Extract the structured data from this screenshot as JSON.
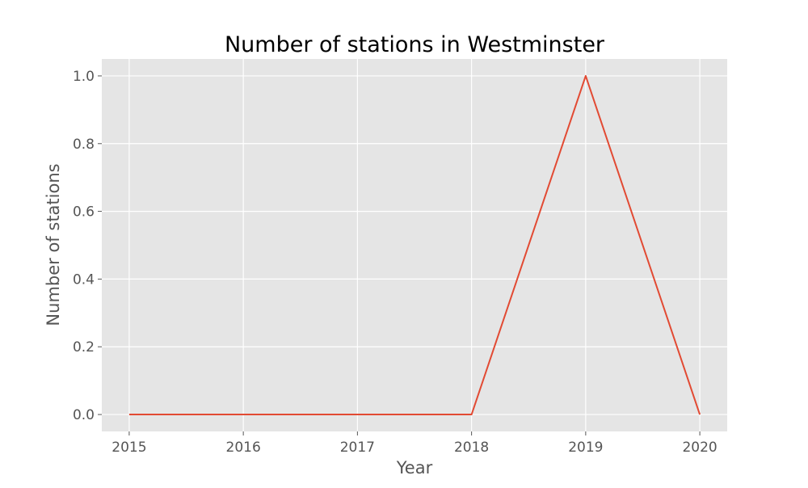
{
  "chart_data": {
    "type": "line",
    "title": "Number of stations in Westminster",
    "xlabel": "Year",
    "ylabel": "Number of stations",
    "x": [
      2015,
      2016,
      2017,
      2018,
      2019,
      2020
    ],
    "series": [
      {
        "values": [
          0,
          0,
          0,
          0,
          1,
          0
        ],
        "color": "#E24A33"
      }
    ],
    "xticks": [
      "2015",
      "2016",
      "2017",
      "2018",
      "2019",
      "2020"
    ],
    "yticks": [
      "0.0",
      "0.2",
      "0.4",
      "0.6",
      "0.8",
      "1.0"
    ],
    "xlim": [
      2014.76,
      2020.24
    ],
    "ylim": [
      -0.05,
      1.05
    ],
    "grid": true,
    "background_color": "#E5E5E5",
    "grid_color": "#FFFFFF"
  }
}
